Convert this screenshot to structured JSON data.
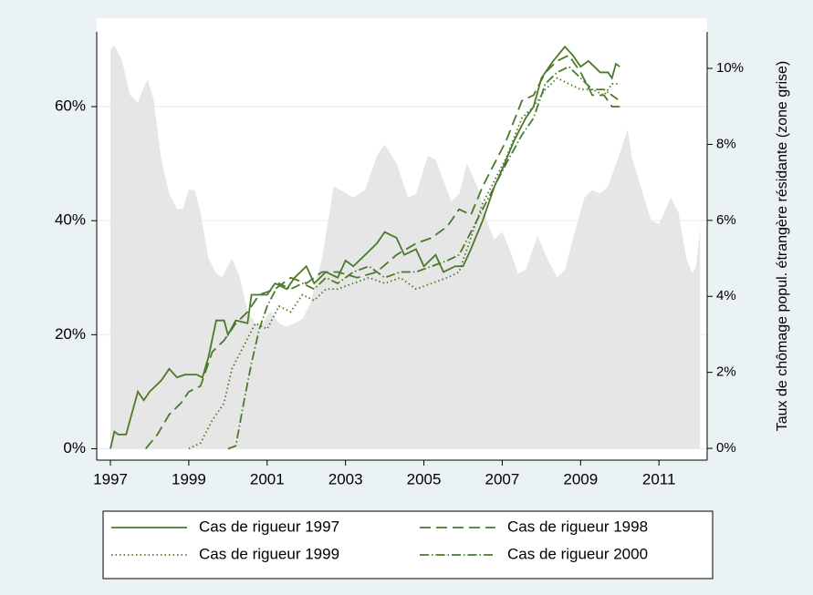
{
  "chart_data": {
    "type": "line",
    "y2_label": "Taux de chômage popul. étrangère résidante (zone grise)",
    "xlim": [
      1996.65,
      2012.23
    ],
    "xticks": [
      1997,
      1999,
      2001,
      2003,
      2005,
      2007,
      2009,
      2011
    ],
    "ylim": [
      -2,
      75.5
    ],
    "yticks": [
      {
        "value": 0,
        "label": "0%"
      },
      {
        "value": 20,
        "label": "20%"
      },
      {
        "value": 40,
        "label": "40%"
      },
      {
        "value": 60,
        "label": "60%"
      }
    ],
    "y2lim": [
      -0.31,
      11.32
    ],
    "y2ticks": [
      {
        "value": 0,
        "label": "0%"
      },
      {
        "value": 2,
        "label": "2%"
      },
      {
        "value": 4,
        "label": "4%"
      },
      {
        "value": 6,
        "label": "6%"
      },
      {
        "value": 8,
        "label": "8%"
      },
      {
        "value": 10,
        "label": "10%"
      }
    ],
    "grid": true,
    "legend": "bottom",
    "area": {
      "axis": "y2",
      "color": "#e6e6e6",
      "x": [
        1997.0,
        1997.1,
        1997.3,
        1997.5,
        1997.7,
        1997.85,
        1997.95,
        1998.1,
        1998.3,
        1998.5,
        1998.7,
        1998.85,
        1999.0,
        1999.15,
        1999.3,
        1999.5,
        1999.7,
        1999.85,
        2000.0,
        2000.1,
        2000.3,
        2000.5,
        2000.7,
        2000.85,
        2001.0,
        2001.1,
        2001.3,
        2001.5,
        2001.7,
        2001.9,
        2002.1,
        2002.4,
        2002.7,
        2003.2,
        2003.5,
        2003.8,
        2004.0,
        2004.3,
        2004.6,
        2004.8,
        2005.1,
        2005.3,
        2005.7,
        2005.9,
        2006.1,
        2006.4,
        2006.6,
        2006.8,
        2007.0,
        2007.2,
        2007.4,
        2007.6,
        2007.9,
        2008.1,
        2008.4,
        2008.6,
        2008.8,
        2009.1,
        2009.3,
        2009.5,
        2009.7,
        2009.95,
        2010.2,
        2010.3,
        2010.5,
        2010.8,
        2011.0,
        2011.3,
        2011.5,
        2011.7,
        2011.85,
        2011.95,
        2012.05
      ],
      "values": [
        10.5,
        10.6,
        10.2,
        9.3,
        9.1,
        9.5,
        9.7,
        9.2,
        7.6,
        6.7,
        6.3,
        6.3,
        6.8,
        6.8,
        6.2,
        5.0,
        4.6,
        4.5,
        4.8,
        5.0,
        4.5,
        3.6,
        3.3,
        3.2,
        3.5,
        3.6,
        3.3,
        3.2,
        3.3,
        3.4,
        3.8,
        5.0,
        6.9,
        6.6,
        6.8,
        7.7,
        8.0,
        7.5,
        6.6,
        6.7,
        7.7,
        7.6,
        6.5,
        6.7,
        7.5,
        6.8,
        6.0,
        5.5,
        5.7,
        5.2,
        4.6,
        4.7,
        5.6,
        5.1,
        4.5,
        4.7,
        5.5,
        6.6,
        6.8,
        6.7,
        6.9,
        7.6,
        8.4,
        7.7,
        7.0,
        6.0,
        5.9,
        6.6,
        6.2,
        5.0,
        4.6,
        4.8,
        5.8
      ]
    },
    "series": [
      {
        "name": "Cas de rigueur 1997",
        "color": "#4a7a28",
        "line_style": "solid",
        "x": [
          1997.0,
          1997.1,
          1997.2,
          1997.4,
          1997.5,
          1997.7,
          1997.85,
          1998.0,
          1998.3,
          1998.5,
          1998.7,
          1998.9,
          1999.2,
          1999.35,
          1999.5,
          1999.7,
          1999.9,
          2000.0,
          2000.2,
          2000.5,
          2000.6,
          2001.0,
          2001.2,
          2001.5,
          2001.7,
          2002.0,
          2002.2,
          2002.5,
          2002.8,
          2003.0,
          2003.2,
          2003.5,
          2003.8,
          2004.0,
          2004.3,
          2004.5,
          2004.8,
          2005.0,
          2005.3,
          2005.5,
          2005.8,
          2006.0,
          2006.2,
          2006.5,
          2006.8,
          2007.0,
          2007.3,
          2007.6,
          2007.8,
          2008.0,
          2008.3,
          2008.6,
          2008.8,
          2009.0,
          2009.2,
          2009.5,
          2009.7,
          2009.8,
          2009.9,
          2010.0
        ],
        "values": [
          0,
          3,
          2.5,
          2.5,
          5,
          10,
          8.5,
          10,
          12,
          14,
          12.5,
          13,
          13,
          12.5,
          16,
          22.5,
          22.5,
          20,
          22.5,
          22,
          27,
          27,
          29,
          28,
          30,
          32,
          29,
          31,
          30,
          33,
          32,
          34,
          36,
          38,
          37,
          34,
          35,
          32,
          34,
          31,
          32,
          32,
          35,
          40,
          46,
          49,
          54,
          58,
          60,
          65,
          68,
          70.5,
          69,
          67,
          68,
          66,
          66,
          65,
          67.5,
          67
        ]
      },
      {
        "name": "Cas de rigueur 1998",
        "color": "#4a7a28",
        "line_style": "dashed",
        "x": [
          1997.9,
          1998.2,
          1998.5,
          1998.8,
          1999.0,
          1999.3,
          1999.6,
          1999.9,
          2000.2,
          2000.5,
          2000.8,
          2001.2,
          2001.6,
          2002.0,
          2002.4,
          2002.8,
          2003.3,
          2003.8,
          2004.3,
          2004.8,
          2005.2,
          2005.6,
          2005.9,
          2006.2,
          2006.5,
          2006.8,
          2007.1,
          2007.5,
          2007.8,
          2008.1,
          2008.4,
          2008.7,
          2009.0,
          2009.3,
          2009.6,
          2009.8,
          2010.0
        ],
        "values": [
          0,
          2.5,
          6,
          8,
          10,
          11,
          17,
          19,
          22,
          24,
          27,
          28,
          30,
          29,
          31,
          31,
          30,
          31,
          34,
          36,
          37,
          39,
          42,
          41,
          46,
          50,
          54,
          61,
          62,
          66,
          68,
          69,
          66,
          62,
          62,
          60,
          60
        ]
      },
      {
        "name": "Cas de rigueur 1999",
        "color": "#4a7a28",
        "line_style": "dotted",
        "x": [
          1999.0,
          1999.3,
          1999.6,
          1999.9,
          2000.1,
          2000.4,
          2000.7,
          2001.0,
          2001.3,
          2001.6,
          2001.9,
          2002.2,
          2002.5,
          2002.8,
          2003.2,
          2003.6,
          2004.0,
          2004.4,
          2004.8,
          2005.2,
          2005.6,
          2005.9,
          2006.2,
          2006.5,
          2006.8,
          2007.1,
          2007.5,
          2007.8,
          2008.1,
          2008.4,
          2008.7,
          2009.0,
          2009.3,
          2009.6,
          2009.8,
          2010.0
        ],
        "values": [
          0,
          1,
          5,
          8,
          14,
          18,
          22,
          21,
          25,
          24,
          27,
          26,
          28,
          28,
          29,
          30,
          29,
          30,
          28,
          29,
          30,
          31,
          37,
          43,
          47,
          51,
          58,
          60,
          63,
          65,
          64,
          63,
          63,
          62,
          64,
          64
        ]
      },
      {
        "name": "Cas de rigueur 2000",
        "color": "#4a7a28",
        "line_style": "dashdot",
        "x": [
          2000.0,
          2000.2,
          2000.4,
          2000.6,
          2000.8,
          2001.0,
          2001.3,
          2001.6,
          2001.9,
          2002.2,
          2002.5,
          2002.8,
          2003.2,
          2003.6,
          2004.0,
          2004.4,
          2004.8,
          2005.2,
          2005.6,
          2005.9,
          2006.2,
          2006.5,
          2006.8,
          2007.1,
          2007.5,
          2007.8,
          2008.1,
          2008.4,
          2008.7,
          2009.0,
          2009.3,
          2009.6,
          2009.8,
          2010.0
        ],
        "values": [
          0,
          0.5,
          8,
          15,
          21,
          25,
          29,
          28,
          29,
          28,
          30,
          29,
          31,
          32,
          30,
          31,
          31,
          32,
          33,
          34,
          38,
          42,
          46,
          50,
          55,
          58,
          64,
          66,
          67,
          65,
          63,
          63,
          62,
          61
        ]
      }
    ]
  }
}
